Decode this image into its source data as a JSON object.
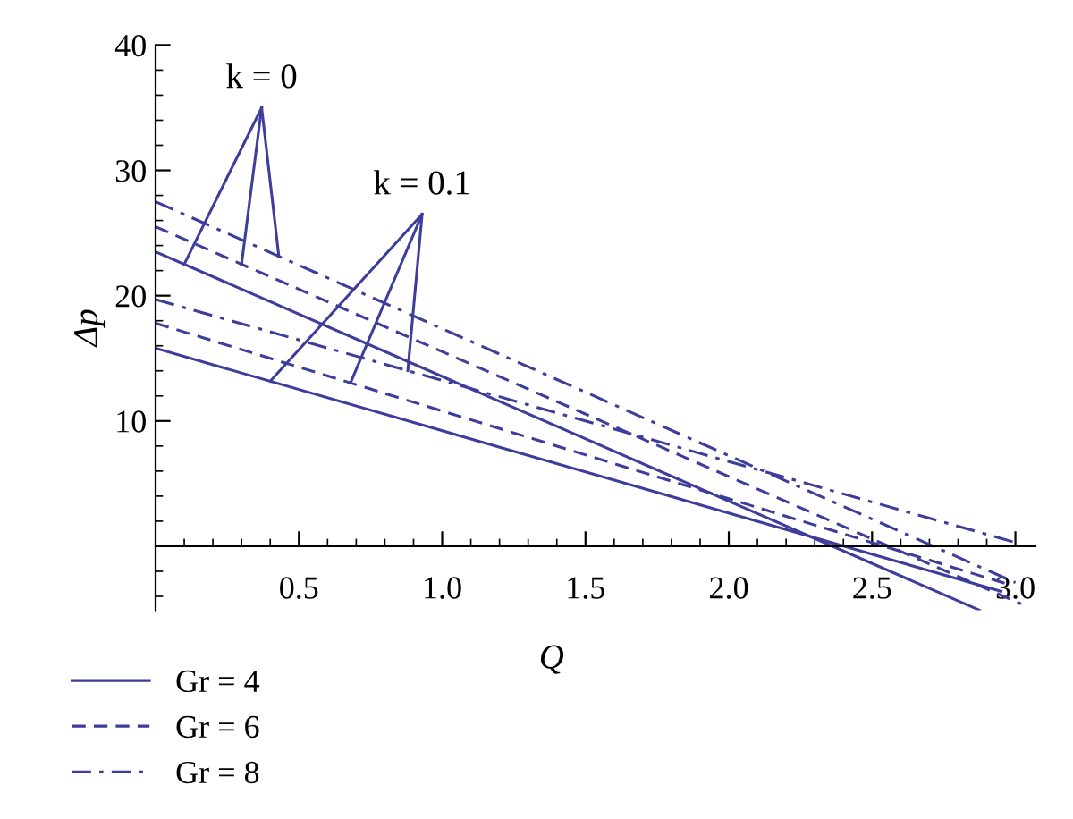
{
  "chart_data": {
    "type": "line",
    "xlabel": "Q",
    "ylabel": "Δp",
    "xlim": [
      0,
      3.07
    ],
    "ylim": [
      -5.1,
      40
    ],
    "xticks": [
      0.5,
      {
        "value": 1,
        "label": "1.0"
      },
      1.5,
      {
        "value": 2,
        "label": "2.0"
      },
      2.5,
      {
        "value": 3,
        "label": "3.0"
      }
    ],
    "yticks": [
      10,
      20,
      30,
      40
    ],
    "series": [
      {
        "name": "Gr = 4",
        "color": "#3d3d9c",
        "line_style": "solid",
        "x": [
          0,
          2.875
        ],
        "values": [
          23.5,
          -5.1
        ]
      },
      {
        "name": "Gr = 6",
        "color": "#3d3d9c",
        "line_style": "dashed",
        "x": [
          0,
          3.02
        ],
        "values": [
          25.5,
          -4.6
        ]
      },
      {
        "name": "Gr = 8",
        "color": "#3d3d9c",
        "line_style": "dashdot",
        "x": [
          0,
          3.0
        ],
        "values": [
          27.5,
          -2.9
        ]
      },
      {
        "color": "#3d3d9c",
        "line_style": "solid",
        "x": [
          0,
          2.95
        ],
        "values": [
          15.8,
          -3.6
        ]
      },
      {
        "color": "#3d3d9c",
        "line_style": "dashed",
        "x": [
          0,
          2.97
        ],
        "values": [
          17.8,
          -3.0
        ]
      },
      {
        "color": "#3d3d9c",
        "line_style": "dashdot",
        "x": [
          0,
          3.0
        ],
        "values": [
          19.7,
          0.3
        ]
      }
    ],
    "annotations": [
      {
        "text": "k = 0",
        "x": 0.3,
        "y": 22.5
      },
      {
        "text": "k = 0.1",
        "x": 0.68,
        "y": 13.0
      }
    ],
    "legend": "bottom left",
    "grid": false
  }
}
